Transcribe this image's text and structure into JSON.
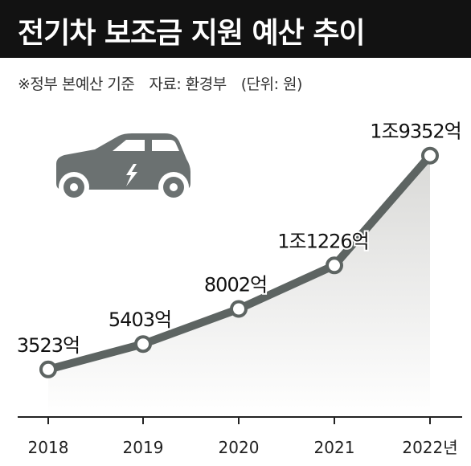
{
  "header": {
    "title": "전기차 보조금 지원 예산 추이",
    "note": "※정부 본예산 기준",
    "source": "자료: 환경부",
    "unit": "(단위: 원)"
  },
  "colors": {
    "title_bg": "#121212",
    "line": "#5d6462",
    "area_gradient_top": "#d9d9d7",
    "area_gradient_bottom": "#ffffff",
    "car_body": "#6b7171",
    "marker_fill": "#ffffff"
  },
  "icons": [
    "electric-car-icon",
    "lightning-bolt-icon"
  ],
  "chart_data": {
    "type": "area",
    "categories": [
      "2018",
      "2019",
      "2020",
      "2021",
      "2022년"
    ],
    "values": [
      3523,
      5403,
      8002,
      11226,
      19352
    ],
    "value_unit": "억 원",
    "data_labels": [
      "3523억",
      "5403억",
      "8002억",
      "1조1226억",
      "1조9352억"
    ],
    "ylim": [
      0,
      21000
    ],
    "grid": false,
    "legend": "none"
  }
}
